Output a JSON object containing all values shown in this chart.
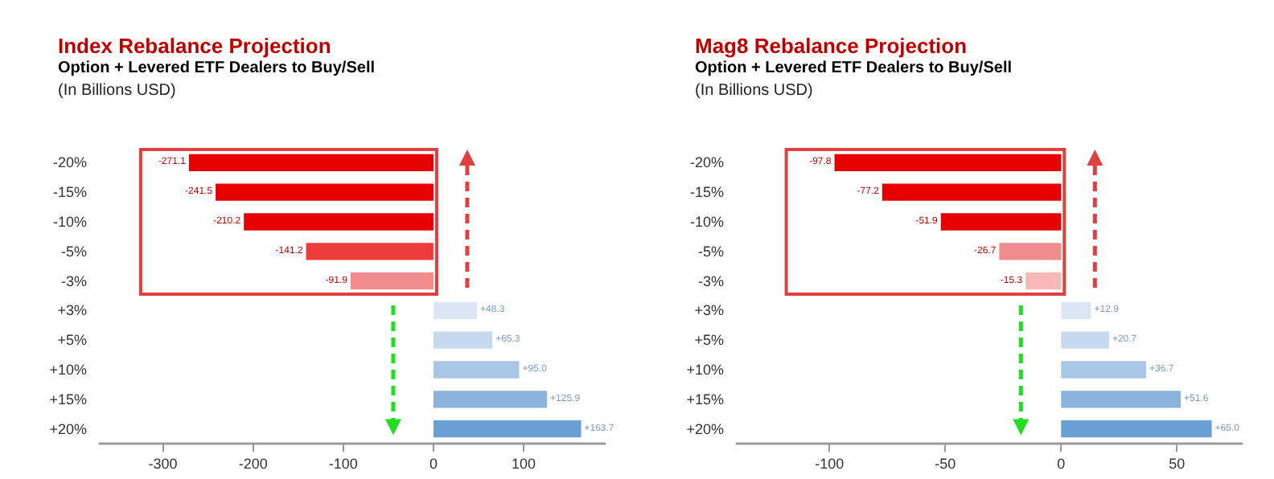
{
  "chart_data": [
    {
      "type": "bar",
      "orientation": "horizontal",
      "title": "Index Rebalance Projection",
      "subtitle": "Option + Levered ETF Dealers to Buy/Sell",
      "annotations": [
        "(In Billions USD)"
      ],
      "categories": [
        "-20%",
        "-15%",
        "-10%",
        "-5%",
        "-3%",
        "+3%",
        "+5%",
        "+10%",
        "+15%",
        "+20%"
      ],
      "values": [
        -271.1,
        -241.5,
        -210.2,
        -141.2,
        -91.9,
        48.3,
        65.3,
        95.0,
        125.9,
        163.7
      ],
      "value_labels": [
        "-271.1",
        "-241.5",
        "-210.2",
        "-141.2",
        "-91.9",
        "+48.3",
        "+65.3",
        "+95.0",
        "+125.9",
        "+163.7"
      ],
      "colors": [
        "#e60000",
        "#e60000",
        "#e60000",
        "#ee3b3b",
        "#f28c8c",
        "#dbe6f4",
        "#c6d8ee",
        "#a8c6e6",
        "#8ab2dc",
        "#6a9fd6"
      ],
      "xlim": [
        -370,
        190
      ],
      "xticks": [
        -300,
        -200,
        -100,
        0,
        100
      ]
    },
    {
      "type": "bar",
      "orientation": "horizontal",
      "title": "Mag8 Rebalance Projection",
      "subtitle": "Option + Levered ETF Dealers to Buy/Sell",
      "annotations": [
        "(In Billions USD)"
      ],
      "categories": [
        "-20%",
        "-15%",
        "-10%",
        "-5%",
        "-3%",
        "+3%",
        "+5%",
        "+10%",
        "+15%",
        "+20%"
      ],
      "values": [
        -97.8,
        -77.2,
        -51.9,
        -26.7,
        -15.3,
        12.9,
        20.7,
        36.7,
        51.6,
        65.0
      ],
      "value_labels": [
        "-97.8",
        "-77.2",
        "-51.9",
        "-26.7",
        "-15.3",
        "+12.9",
        "+20.7",
        "+36.7",
        "+51.6",
        "+65.0"
      ],
      "colors": [
        "#e60000",
        "#e60000",
        "#e60000",
        "#f28c8c",
        "#f7b8b8",
        "#dbe6f4",
        "#c6d8ee",
        "#a8c6e6",
        "#8ab2dc",
        "#6a9fd6"
      ],
      "xlim": [
        -140,
        78
      ],
      "xticks": [
        -100,
        -50,
        0,
        50
      ]
    }
  ]
}
